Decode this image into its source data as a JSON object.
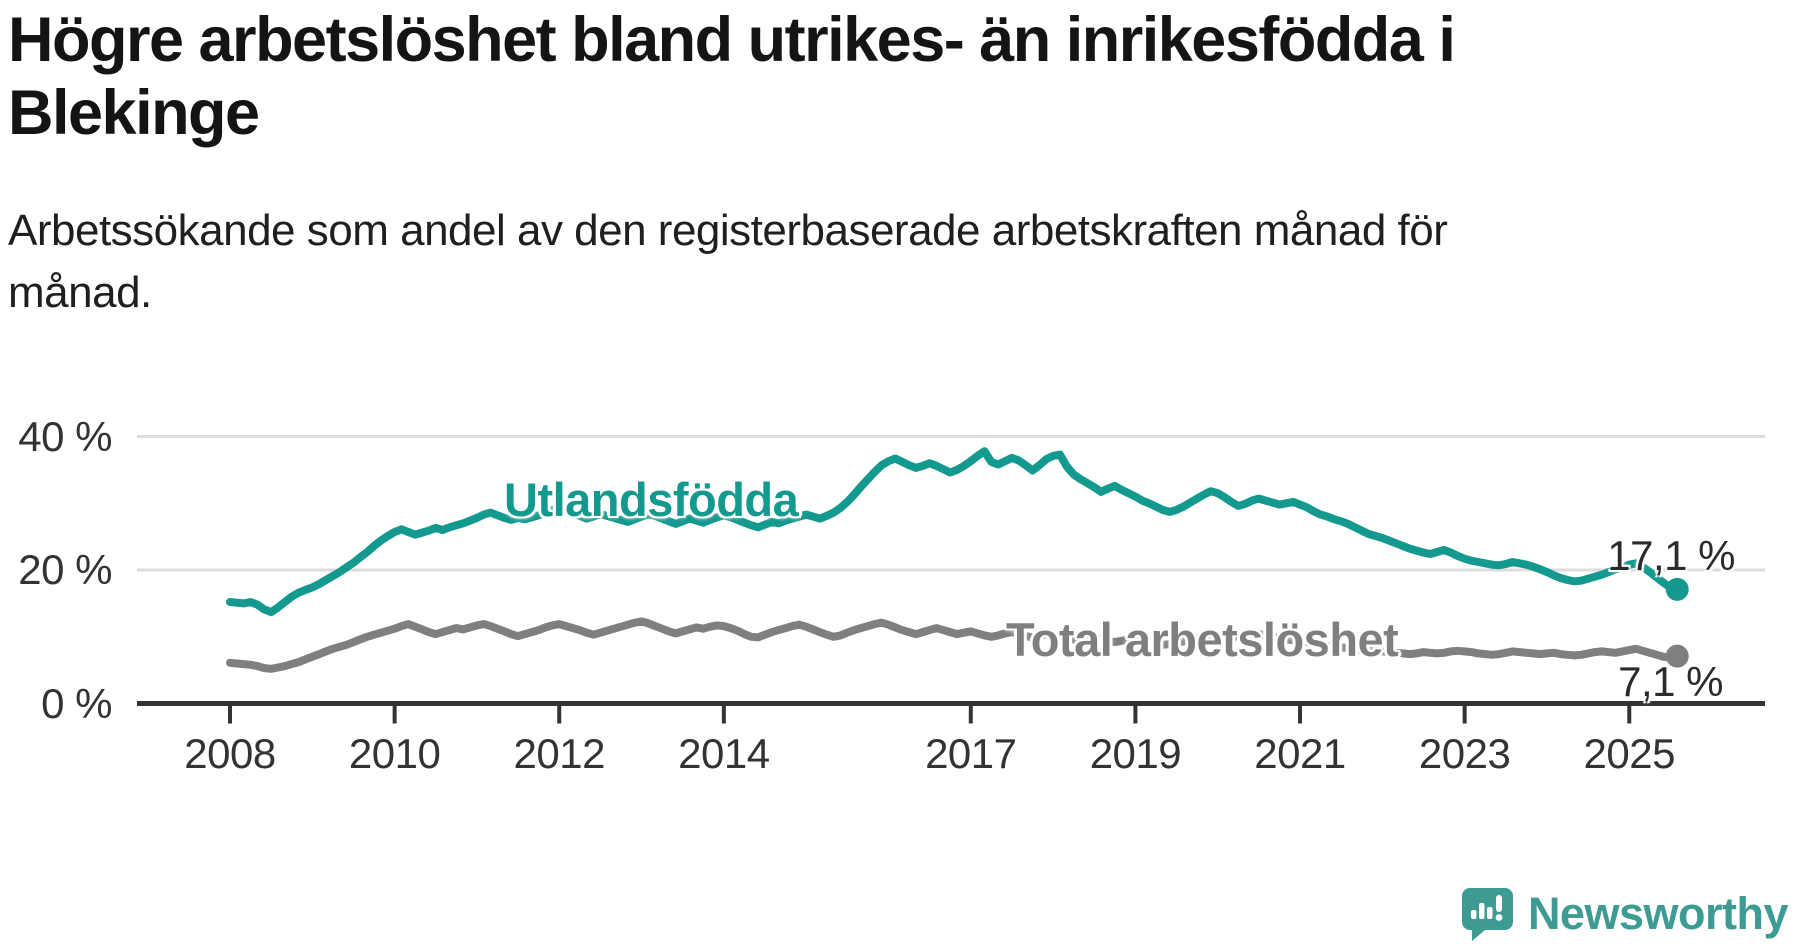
{
  "header": {
    "title": "Högre arbetslöshet bland utrikes- än inrikesfödda i\nBlekinge",
    "subtitle": "Arbetssökande som andel av den registerbaserade arbetskraften månad för\nmånad."
  },
  "chart_data": {
    "type": "line",
    "unit": "%",
    "region": "Blekinge",
    "x_start_month": "2008-01",
    "x_end_month": "2025-08",
    "grid": "horizontal-only",
    "y_axis": {
      "ticks": [
        {
          "value": 0,
          "label": "0 %"
        },
        {
          "value": 20,
          "label": "20 %"
        },
        {
          "value": 40,
          "label": "40 %"
        }
      ],
      "max": 40
    },
    "x_axis": {
      "tick_years": [
        "2008",
        "2010",
        "2012",
        "2014",
        "2017",
        "2019",
        "2021",
        "2023",
        "2025"
      ]
    },
    "series": [
      {
        "id": "utlandsfodda",
        "name": "Utlandsfödda",
        "color": "#13998d",
        "end_label": "17,1 %",
        "end_value": 17.1,
        "values": [
          15.2,
          15.1,
          15.0,
          15.2,
          14.8,
          14.1,
          13.7,
          14.4,
          15.2,
          16.0,
          16.6,
          17.0,
          17.4,
          17.9,
          18.5,
          19.1,
          19.7,
          20.4,
          21.1,
          21.9,
          22.7,
          23.6,
          24.4,
          25.1,
          25.7,
          26.1,
          25.7,
          25.3,
          25.6,
          25.9,
          26.3,
          26.0,
          26.4,
          26.7,
          27.0,
          27.4,
          27.8,
          28.3,
          28.6,
          28.2,
          27.8,
          27.5,
          27.8,
          27.6,
          27.9,
          28.2,
          28.6,
          29.0,
          29.3,
          28.9,
          28.5,
          28.1,
          27.7,
          28.0,
          28.4,
          28.1,
          27.8,
          27.5,
          27.2,
          27.6,
          28.0,
          28.4,
          28.1,
          27.7,
          27.3,
          26.9,
          27.3,
          27.7,
          27.4,
          27.1,
          27.5,
          27.9,
          28.2,
          27.9,
          27.5,
          27.1,
          26.7,
          26.4,
          26.8,
          27.2,
          27.0,
          27.4,
          27.7,
          28.0,
          28.3,
          28.0,
          27.7,
          28.1,
          28.6,
          29.3,
          30.2,
          31.3,
          32.5,
          33.6,
          34.7,
          35.7,
          36.3,
          36.7,
          36.2,
          35.7,
          35.3,
          35.6,
          36.0,
          35.6,
          35.1,
          34.6,
          35.0,
          35.6,
          36.3,
          37.1,
          37.8,
          36.2,
          35.8,
          36.3,
          36.8,
          36.4,
          35.7,
          34.9,
          35.7,
          36.6,
          37.1,
          37.3,
          35.5,
          34.3,
          33.6,
          33.0,
          32.4,
          31.7,
          32.2,
          32.6,
          32.0,
          31.5,
          31.0,
          30.4,
          30.0,
          29.5,
          29.0,
          28.7,
          29.0,
          29.5,
          30.1,
          30.7,
          31.3,
          31.8,
          31.5,
          30.9,
          30.2,
          29.6,
          29.9,
          30.4,
          30.7,
          30.4,
          30.1,
          29.8,
          30.0,
          30.2,
          29.8,
          29.4,
          28.8,
          28.3,
          28.0,
          27.6,
          27.3,
          26.9,
          26.4,
          25.9,
          25.4,
          25.1,
          24.8,
          24.4,
          24.0,
          23.6,
          23.2,
          22.9,
          22.6,
          22.4,
          22.7,
          23.0,
          22.6,
          22.1,
          21.7,
          21.4,
          21.2,
          21.0,
          20.8,
          20.7,
          20.9,
          21.2,
          21.0,
          20.8,
          20.5,
          20.1,
          19.7,
          19.2,
          18.8,
          18.5,
          18.3,
          18.4,
          18.7,
          19.0,
          19.3,
          19.7,
          20.1,
          20.4,
          20.8,
          21.0,
          20.4,
          19.7,
          18.9,
          18.1,
          17.4,
          17.1
        ]
      },
      {
        "id": "total",
        "name": "Total arbetslöshet",
        "color": "#7f7f7f",
        "end_label": "7,1 %",
        "end_value": 7.1,
        "values": [
          6.1,
          6.0,
          5.9,
          5.8,
          5.6,
          5.3,
          5.2,
          5.4,
          5.6,
          5.9,
          6.2,
          6.6,
          7.0,
          7.4,
          7.8,
          8.2,
          8.5,
          8.8,
          9.2,
          9.6,
          10.0,
          10.3,
          10.6,
          10.9,
          11.2,
          11.6,
          11.9,
          11.5,
          11.1,
          10.7,
          10.4,
          10.7,
          11.0,
          11.3,
          11.1,
          11.4,
          11.7,
          11.9,
          11.6,
          11.2,
          10.8,
          10.4,
          10.1,
          10.4,
          10.7,
          11.0,
          11.4,
          11.7,
          11.9,
          11.6,
          11.3,
          11.0,
          10.6,
          10.3,
          10.6,
          10.9,
          11.2,
          11.5,
          11.8,
          12.1,
          12.3,
          12.0,
          11.6,
          11.2,
          10.8,
          10.5,
          10.8,
          11.1,
          11.4,
          11.2,
          11.5,
          11.7,
          11.6,
          11.3,
          10.9,
          10.4,
          10.0,
          9.9,
          10.3,
          10.7,
          11.0,
          11.3,
          11.6,
          11.8,
          11.5,
          11.1,
          10.7,
          10.3,
          10.0,
          10.2,
          10.6,
          11.0,
          11.3,
          11.6,
          11.9,
          12.1,
          11.8,
          11.4,
          11.0,
          10.7,
          10.4,
          10.7,
          11.0,
          11.3,
          11.0,
          10.7,
          10.4,
          10.6,
          10.8,
          10.5,
          10.2,
          10.0,
          10.2,
          10.5,
          10.7,
          10.4,
          10.1,
          9.9,
          10.1,
          10.4,
          10.2,
          10.0,
          9.8,
          9.6,
          9.4,
          9.6,
          9.8,
          9.6,
          9.4,
          9.2,
          9.4,
          9.6,
          9.4,
          9.2,
          9.0,
          8.9,
          8.8,
          8.9,
          9.1,
          9.3,
          9.5,
          9.7,
          9.9,
          10.0,
          10.1,
          10.0,
          9.9,
          10.1,
          10.4,
          10.6,
          10.4,
          10.2,
          10.0,
          9.8,
          9.6,
          9.5,
          9.4,
          9.2,
          9.0,
          8.8,
          8.6,
          8.5,
          8.4,
          8.3,
          8.1,
          8.0,
          7.9,
          7.8,
          7.8,
          7.7,
          7.6,
          7.5,
          7.4,
          7.5,
          7.7,
          7.6,
          7.5,
          7.6,
          7.8,
          7.9,
          7.8,
          7.7,
          7.5,
          7.4,
          7.3,
          7.4,
          7.6,
          7.8,
          7.7,
          7.6,
          7.5,
          7.4,
          7.5,
          7.6,
          7.4,
          7.3,
          7.2,
          7.3,
          7.5,
          7.7,
          7.8,
          7.7,
          7.6,
          7.8,
          8.0,
          8.2,
          7.9,
          7.6,
          7.3,
          7.0,
          6.9,
          7.1
        ]
      }
    ],
    "colors": {
      "gridline": "#dcdcdc",
      "axis": "#333333",
      "tick_text": "#333333"
    }
  },
  "branding": {
    "logo_text": "Newsworthy",
    "logo_color": "#3d9b94"
  }
}
